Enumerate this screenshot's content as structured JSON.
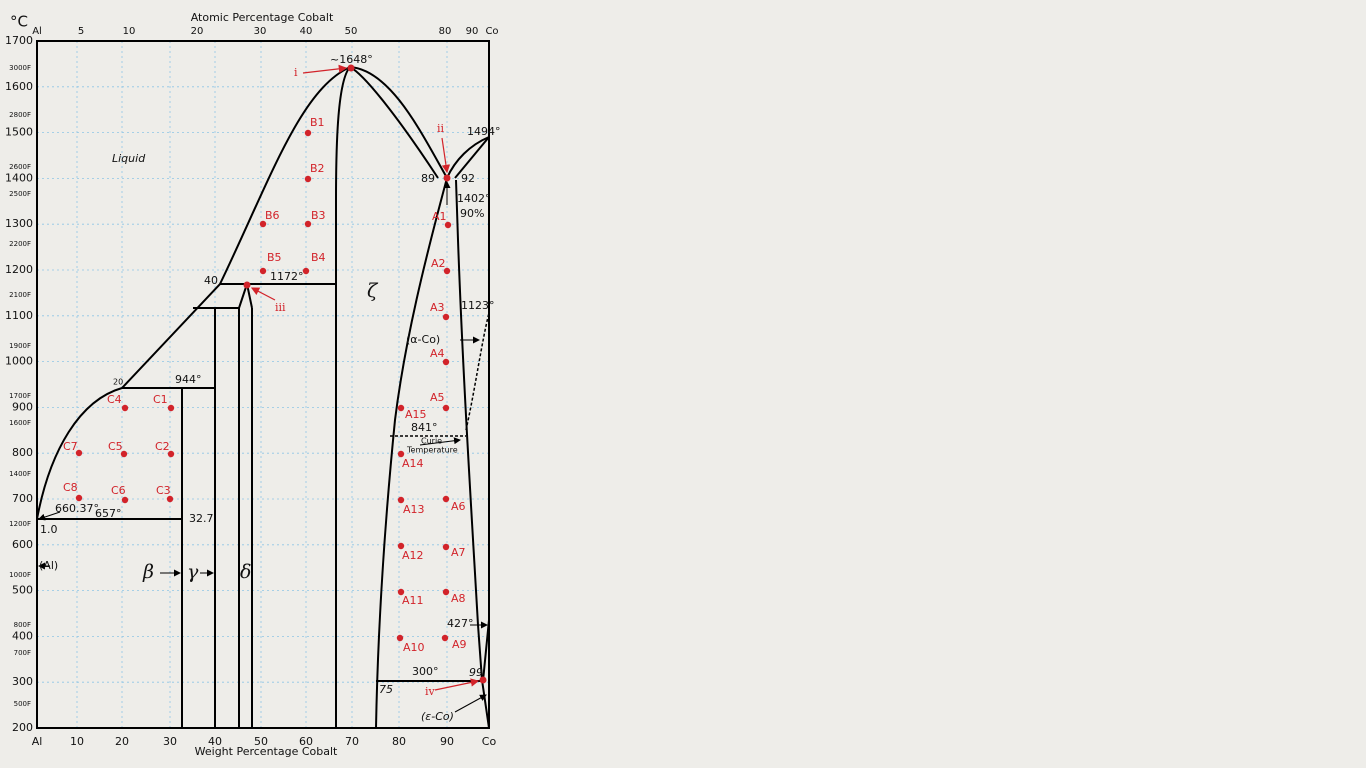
{
  "axes": {
    "top_title": "Atomic Percentage Cobalt",
    "bottom_title": "Weight Percentage Cobalt",
    "celsius_unit": "°C",
    "celsius_ticks": [
      "1700",
      "1600",
      "1500",
      "1400",
      "1300",
      "1200",
      "1100",
      "1000",
      "900",
      "800",
      "700",
      "600",
      "500",
      "400",
      "300",
      "200"
    ],
    "fahrenheit_ticks": [
      "3000F",
      "2800F",
      "2600F",
      "2500F",
      "2200F",
      "2100F",
      "1900F",
      "1700F",
      "1600F",
      "1400F",
      "1200F",
      "1000F",
      "800F",
      "700F",
      "500F"
    ],
    "bottom_ticks": [
      "Al",
      "10",
      "20",
      "30",
      "40",
      "50",
      "60",
      "70",
      "80",
      "90",
      "Co"
    ],
    "top_ticks": [
      "Al",
      "5",
      "10",
      "20",
      "30",
      "40",
      "50",
      "80",
      "90",
      "Co"
    ]
  },
  "annotations": [
    "~1648°",
    "1494°",
    "89",
    "92",
    "1402°",
    "90%",
    "1123°",
    "(α-Co)",
    "841°",
    "Curie",
    "Temperature",
    "944°",
    "20",
    "40",
    "1172°",
    "660.37°",
    "657°",
    "1.0",
    "32.7",
    "(Al)",
    "β",
    "γ",
    "δ",
    "ζ",
    "Liquid",
    "427°",
    "300°",
    "75",
    "99",
    "(ε-Co)"
  ],
  "markers": [
    "i",
    "ii",
    "iii",
    "iv"
  ],
  "points": [
    "B1",
    "B2",
    "B3",
    "B6",
    "B4",
    "B5",
    "A1",
    "A2",
    "A3",
    "A4",
    "A5",
    "A15",
    "A14",
    "A13",
    "A6",
    "A12",
    "A7",
    "A11",
    "A8",
    "A10",
    "A9",
    "C1",
    "C4",
    "C7",
    "C5",
    "C2",
    "C8",
    "C6",
    "C3"
  ]
}
